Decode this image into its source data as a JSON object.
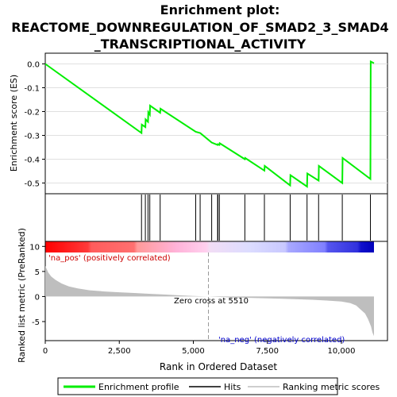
{
  "chart_data": {
    "type": "line",
    "title_lines": [
      "Enrichment plot:",
      "REACTOME_DOWNREGULATION_OF_SMAD2_3_SMAD4",
      "_TRANSCRIPTIONAL_ACTIVITY"
    ],
    "colors": {
      "es_line": "#00ee00",
      "hits": "#000000",
      "metric_fill": "#bebebe",
      "pos_text": "#cc0000",
      "neg_text": "#0000cc",
      "zero_cross_line": "#999999"
    },
    "es_panel": {
      "ylabel": "Enrichment score (ES)",
      "ylim": [
        -0.545,
        0.045
      ],
      "yticks": [
        0.0,
        -0.1,
        -0.2,
        -0.3,
        -0.4,
        -0.5
      ],
      "ytick_labels": [
        "0.0",
        "-0.1",
        "-0.2",
        "-0.3",
        "-0.4",
        "-0.5"
      ],
      "grid": true,
      "points": [
        [
          0,
          0.0
        ],
        [
          3250,
          -0.29
        ],
        [
          3260,
          -0.255
        ],
        [
          3380,
          -0.265
        ],
        [
          3390,
          -0.233
        ],
        [
          3470,
          -0.243
        ],
        [
          3480,
          -0.203
        ],
        [
          3530,
          -0.213
        ],
        [
          3540,
          -0.175
        ],
        [
          3880,
          -0.205
        ],
        [
          3890,
          -0.188
        ],
        [
          5080,
          -0.285
        ],
        [
          5230,
          -0.29
        ],
        [
          5620,
          -0.33
        ],
        [
          5820,
          -0.34
        ],
        [
          5830,
          -0.337
        ],
        [
          5880,
          -0.34
        ],
        [
          5890,
          -0.333
        ],
        [
          6740,
          -0.4
        ],
        [
          6750,
          -0.395
        ],
        [
          7400,
          -0.448
        ],
        [
          7410,
          -0.428
        ],
        [
          8270,
          -0.51
        ],
        [
          8280,
          -0.467
        ],
        [
          8840,
          -0.515
        ],
        [
          8850,
          -0.46
        ],
        [
          9230,
          -0.49
        ],
        [
          9240,
          -0.428
        ],
        [
          10030,
          -0.5
        ],
        [
          10040,
          -0.395
        ],
        [
          10980,
          -0.483
        ],
        [
          10990,
          0.01
        ],
        [
          11100,
          0.003
        ]
      ]
    },
    "hits_panel": {
      "hit_ranks": [
        3250,
        3380,
        3470,
        3530,
        3880,
        5080,
        5230,
        5620,
        5820,
        5830,
        5880,
        6740,
        7400,
        8270,
        8840,
        9230,
        10030,
        10980
      ]
    },
    "metric_panel": {
      "ylabel": "Ranked list metric (PreRanked)",
      "xlabel": "Rank in Ordered Dataset",
      "ylim": [
        -8.8,
        11.0
      ],
      "yticks": [
        10,
        5,
        0,
        -5
      ],
      "ytick_labels": [
        "10",
        "5",
        "0",
        "-5"
      ],
      "xlim": [
        0,
        11100
      ],
      "xticks": [
        0,
        2500,
        5000,
        7500,
        10000
      ],
      "xtick_labels": [
        "0",
        "2,500",
        "5,000",
        "7,500",
        "10,000"
      ],
      "zero_cross": 5510,
      "zero_cross_label": "Zero cross at 5510",
      "pos_label": "'na_pos' (positively correlated)",
      "neg_label": "'na_neg' (negatively correlated)",
      "curve": [
        [
          0,
          6.1
        ],
        [
          100,
          4.8
        ],
        [
          200,
          4.0
        ],
        [
          350,
          3.3
        ],
        [
          550,
          2.6
        ],
        [
          800,
          2.0
        ],
        [
          1100,
          1.6
        ],
        [
          1500,
          1.25
        ],
        [
          2000,
          1.0
        ],
        [
          2500,
          0.85
        ],
        [
          3000,
          0.7
        ],
        [
          3500,
          0.55
        ],
        [
          4000,
          0.4
        ],
        [
          4500,
          0.25
        ],
        [
          5000,
          0.12
        ],
        [
          5510,
          0.0
        ],
        [
          6000,
          -0.12
        ],
        [
          6500,
          -0.2
        ],
        [
          7000,
          -0.28
        ],
        [
          7500,
          -0.36
        ],
        [
          8000,
          -0.45
        ],
        [
          8500,
          -0.55
        ],
        [
          9000,
          -0.65
        ],
        [
          9500,
          -0.8
        ],
        [
          10000,
          -1.0
        ],
        [
          10300,
          -1.3
        ],
        [
          10500,
          -1.8
        ],
        [
          10650,
          -2.6
        ],
        [
          10800,
          -3.4
        ],
        [
          10900,
          -4.5
        ],
        [
          11000,
          -6.0
        ],
        [
          11050,
          -7.2
        ],
        [
          11100,
          -7.9
        ]
      ]
    },
    "legend": {
      "entries": [
        {
          "label": "Enrichment profile",
          "color": "#00ee00"
        },
        {
          "label": "Hits",
          "color": "#000000"
        },
        {
          "label": "Ranking metric scores",
          "color": "#bebebe"
        }
      ]
    }
  }
}
